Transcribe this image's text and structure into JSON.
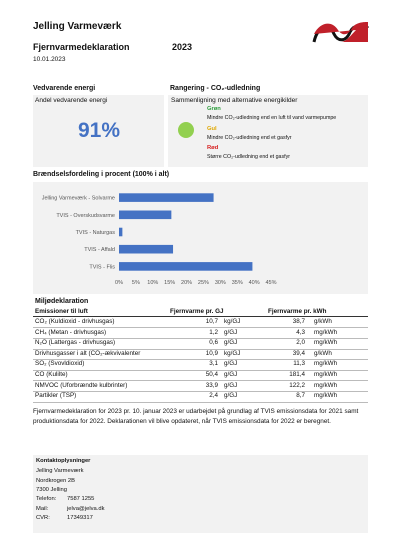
{
  "header": {
    "title": "Jelling Varmeværk",
    "subtitle": "Fjernvarmedeklaration",
    "year": "2023",
    "date": "10.01.2023"
  },
  "renewable": {
    "heading": "Vedvarende energi",
    "label": "Andel vedvarende energi",
    "value": "91%"
  },
  "ranking": {
    "heading": "Rangering - CO₂-udledning",
    "subheading": "Sammenligning med alternative energikilder",
    "levels": [
      {
        "name": "Grøn",
        "color": "#2e9e3e",
        "text": "Mindre CO₂-udledning end en luft til vand varmepumpe"
      },
      {
        "name": "Gul",
        "color": "#e0a800",
        "text": "Mindre CO₂-udledning end et gasfyr"
      },
      {
        "name": "Rød",
        "color": "#d62020",
        "text": "Større CO₂-udledning end et gasfyr"
      }
    ],
    "indicator_color": "#92d050"
  },
  "chart_data": {
    "type": "bar",
    "orientation": "horizontal",
    "title": "Brændselsfordeling i procent (100% i alt)",
    "categories": [
      "Jelling Varmeværk - Solvarme",
      "TVIS - Overskudsvarme",
      "TVIS - Naturgas",
      "TVIS - Affald",
      "TVIS - Flis"
    ],
    "values": [
      28,
      15.5,
      1,
      16,
      39.5
    ],
    "color": "#4472c4",
    "xlim": [
      0,
      45
    ],
    "xticks": [
      {
        "value": 0,
        "label": "0%"
      },
      {
        "value": 5,
        "label": "5%"
      },
      {
        "value": 10,
        "label": "10%"
      },
      {
        "value": 15,
        "label": "15%"
      },
      {
        "value": 20,
        "label": "20%"
      },
      {
        "value": 25,
        "label": "25%"
      },
      {
        "value": 30,
        "label": "30%"
      },
      {
        "value": 35,
        "label": "35%"
      },
      {
        "value": 40,
        "label": "40%"
      },
      {
        "value": 45,
        "label": "45%"
      }
    ],
    "grid": false
  },
  "table": {
    "heading": "Miljødeklaration",
    "columns": [
      "Emissioner til luft",
      "Fjernvarme pr. GJ",
      "Fjernvarme pr. kWh"
    ],
    "rows": [
      [
        "CO₂ (Kuldioxid - drivhusgas)",
        "10,7",
        "kg/GJ",
        "38,7",
        "g/kWh"
      ],
      [
        "CH₄ (Metan - drivhusgas)",
        "1,2",
        "g/GJ",
        "4,3",
        "mg/kWh"
      ],
      [
        "N₂O (Lattergas - drivhusgas)",
        "0,6",
        "g/GJ",
        "2,0",
        "mg/kWh"
      ],
      [
        "Drivhusgasser i alt (CO₂-ækvivalenter",
        "10,9",
        "kg/GJ",
        "39,4",
        "g/kWh"
      ],
      [
        "SO₂ (Svovldioxid)",
        "3,1",
        "g/GJ",
        "11,3",
        "mg/kWh"
      ],
      [
        "CO (Kulilte)",
        "50,4",
        "g/GJ",
        "181,4",
        "mg/kWh"
      ],
      [
        "NMVOC (Uforbrændte kulbrinter)",
        "33,9",
        "g/GJ",
        "122,2",
        "mg/kWh"
      ],
      [
        "Partikler (TSP)",
        "2,4",
        "g/GJ",
        "8,7",
        "mg/kWh"
      ]
    ]
  },
  "note": "Fjernvarmedeklaration for 2023 pr. 10. januar 2023 er udarbejdet på grundlag af TVIS emissionsdata for 2021 samt produktionsdata for 2022. Deklarationen vil blive opdateret, når TVIS emissionsdata for 2022 er beregnet.",
  "contact": {
    "heading": "Kontaktoplysninger",
    "lines": [
      "Jelling Varmeværk",
      "Nordkrogen 2B",
      "7300 Jelling"
    ],
    "fields": [
      [
        "Telefon:",
        "7587 1255"
      ],
      [
        "Mail:",
        "jelva@jelva.dk"
      ],
      [
        "CVR:",
        "17349317"
      ]
    ]
  }
}
